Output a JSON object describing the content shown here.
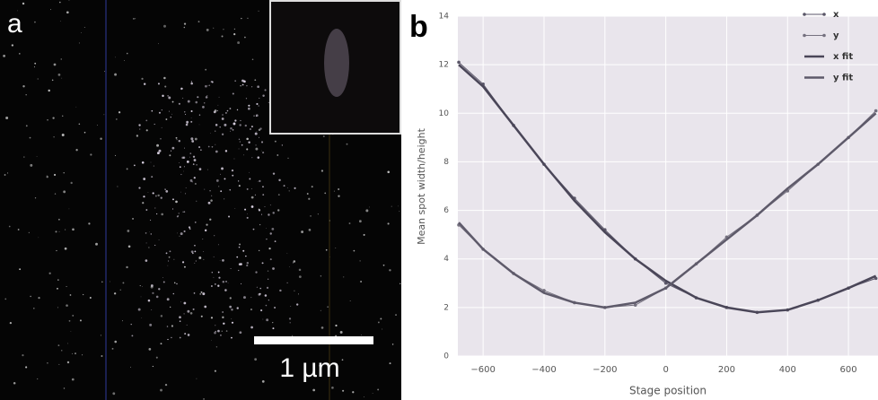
{
  "panel_a": {
    "label": "a",
    "scale_bar": "1 µm"
  },
  "chart_data": {
    "type": "line",
    "panel_label": "b",
    "x_label": "Stage position",
    "y_label": "Mean spot width/height",
    "x": [
      -680,
      -600,
      -500,
      -400,
      -300,
      -200,
      -100,
      0,
      100,
      200,
      300,
      400,
      500,
      600,
      690
    ],
    "series": [
      {
        "name": "x",
        "color": "#5a5668",
        "markers": true,
        "values": [
          12.1,
          11.2,
          9.5,
          7.9,
          6.5,
          5.2,
          4.0,
          3.0,
          2.4,
          2.0,
          1.8,
          1.9,
          2.3,
          2.8,
          3.2
        ]
      },
      {
        "name": "y",
        "color": "#75717f",
        "markers": true,
        "values": [
          5.4,
          4.4,
          3.4,
          2.7,
          2.2,
          2.0,
          2.1,
          2.8,
          3.8,
          4.9,
          5.8,
          6.8,
          7.9,
          9.0,
          10.1
        ]
      },
      {
        "name": "x fit",
        "color": "#4a4658",
        "markers": false,
        "values": [
          12.0,
          11.1,
          9.5,
          7.9,
          6.4,
          5.1,
          4.0,
          3.1,
          2.4,
          2.0,
          1.8,
          1.9,
          2.3,
          2.8,
          3.3
        ]
      },
      {
        "name": "y fit",
        "color": "#5e5a6a",
        "markers": false,
        "values": [
          5.5,
          4.4,
          3.4,
          2.6,
          2.2,
          2.0,
          2.2,
          2.8,
          3.8,
          4.8,
          5.8,
          6.9,
          7.9,
          9.0,
          10.0
        ]
      }
    ],
    "xlim": [
      -683,
      697
    ],
    "xticks": [
      {
        "value": -600,
        "label": "−600"
      },
      {
        "value": -400,
        "label": "−400"
      },
      {
        "value": -200,
        "label": "−200"
      },
      0,
      200,
      400,
      600
    ],
    "ylim": [
      0,
      14
    ],
    "yticks": [
      0,
      2,
      4,
      6,
      8,
      10,
      12,
      14
    ],
    "grid": true
  }
}
